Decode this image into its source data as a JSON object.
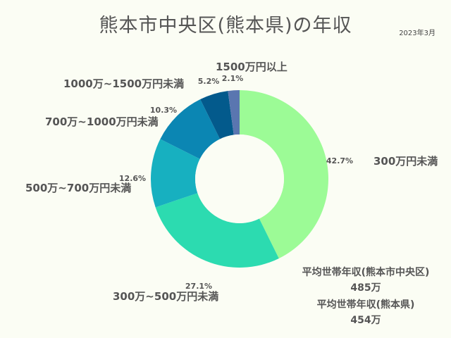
{
  "title": "熊本市中央区(熊本県)の年収",
  "date": "2023年3月",
  "colors": {
    "background": "#fbfdf4",
    "text": "#555555"
  },
  "chart_data": {
    "type": "pie",
    "donut": true,
    "categories": [
      "300万円未満",
      "300万~500万円未満",
      "500万~700万円未満",
      "700万~1000万円未満",
      "1000万~1500万円未満",
      "1500万円以上"
    ],
    "values": [
      42.7,
      27.1,
      12.6,
      10.3,
      5.2,
      2.1
    ],
    "value_labels": [
      "42.7%",
      "27.1%",
      "12.6%",
      "10.3%",
      "5.2%",
      "2.1%"
    ],
    "colors": [
      "#9cfb96",
      "#2cdbb0",
      "#17b0c0",
      "#0b86b3",
      "#035a8c",
      "#5a76b0"
    ],
    "legend": "none"
  },
  "summary": {
    "city_label": "平均世帯年収(熊本市中央区)",
    "city_value": "485万",
    "pref_label": "平均世帯年収(熊本県)",
    "pref_value": "454万"
  }
}
